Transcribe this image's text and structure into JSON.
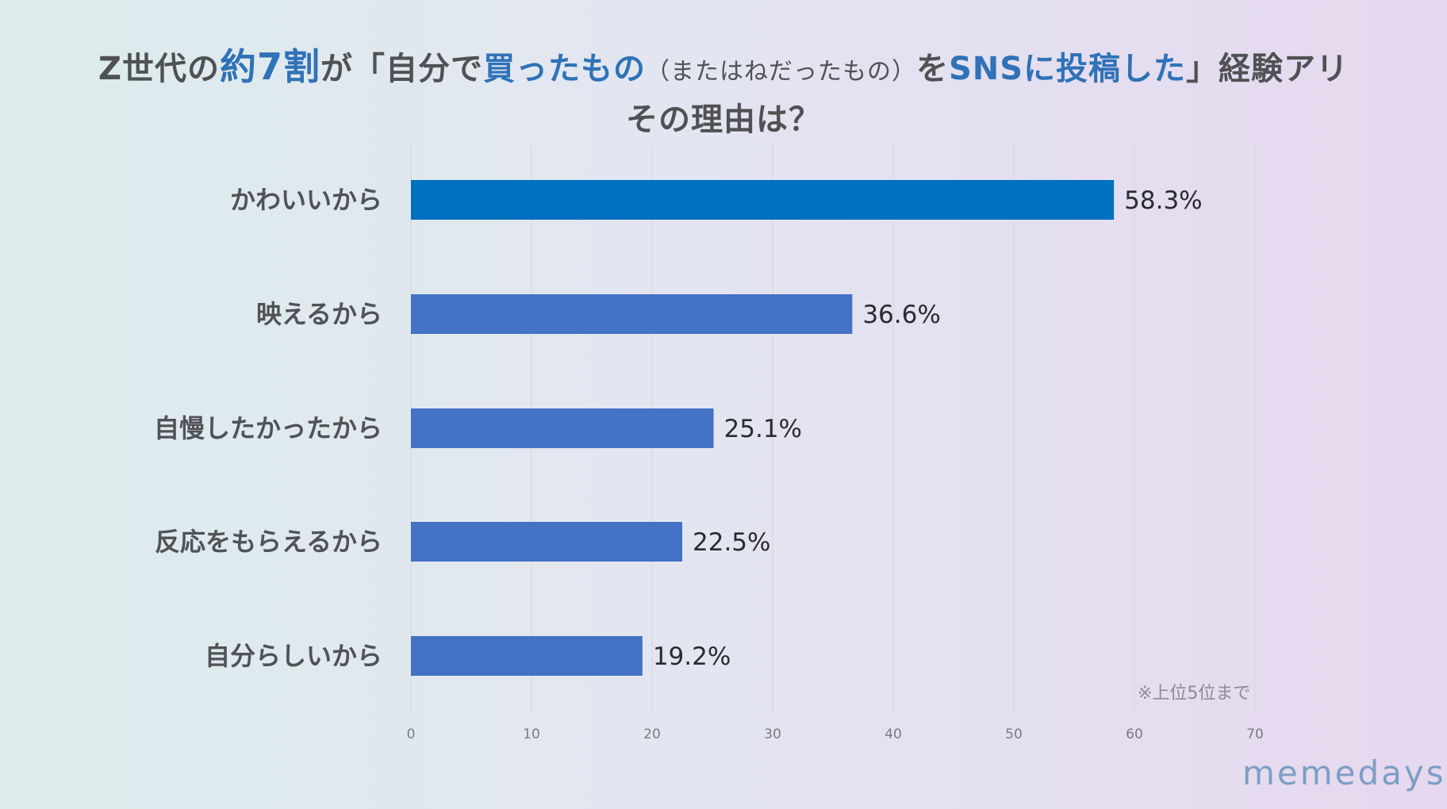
{
  "title": {
    "parts": [
      "Z世代の",
      "約7割",
      "が「自分で",
      "買ったもの",
      "（またはねだったもの）",
      "を",
      "SNSに投稿した",
      "」経験アリ"
    ],
    "line2": "その理由は？"
  },
  "chart_data": {
    "type": "bar",
    "orientation": "horizontal",
    "categories": [
      "かわいいから",
      "映えるから",
      "自慢したかったから",
      "反応をもらえるから",
      "自分らしいから"
    ],
    "values": [
      58.3,
      36.6,
      25.1,
      22.5,
      19.2
    ],
    "value_labels": [
      "58.3%",
      "36.6%",
      "25.1%",
      "22.5%",
      "19.2%"
    ],
    "bar_colors": [
      "#0070c0",
      "#4472c4",
      "#4472c4",
      "#4472c4",
      "#4472c4"
    ],
    "xlim": [
      0,
      70
    ],
    "xticks": [
      0,
      10,
      20,
      30,
      40,
      50,
      60,
      70
    ],
    "grid": true
  },
  "note": "※上位5位まで",
  "brand": "memedays"
}
